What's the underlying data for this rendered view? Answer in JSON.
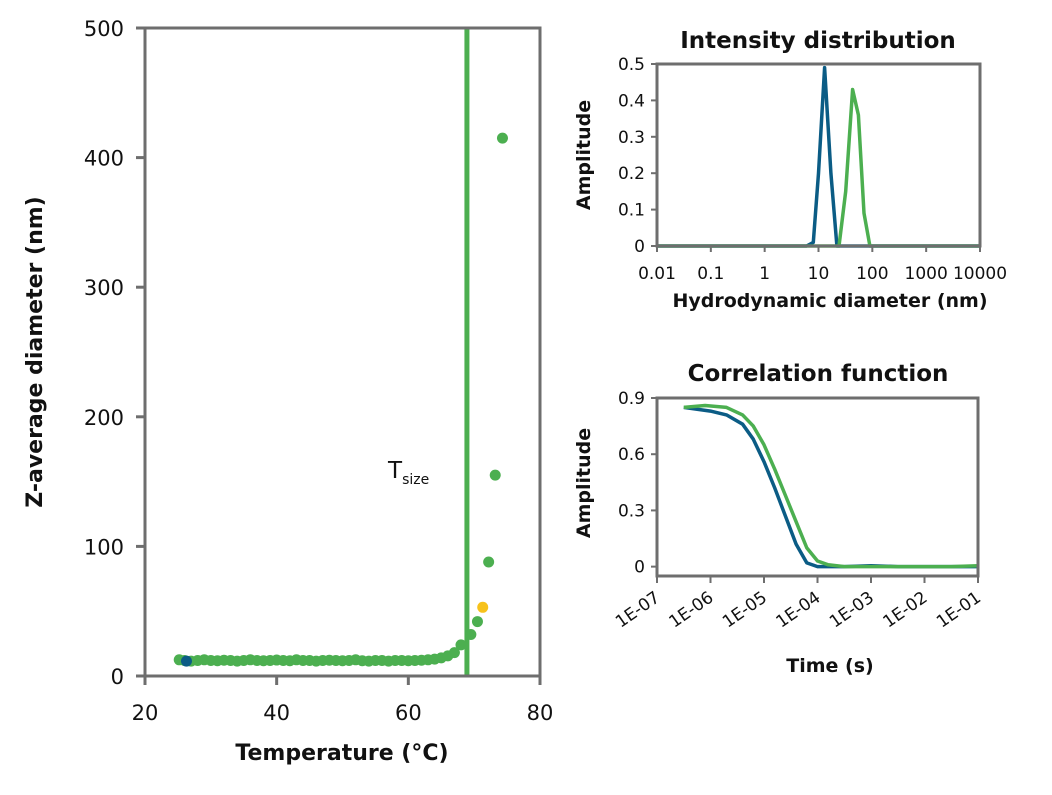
{
  "colors": {
    "green": "#4caf50",
    "blue": "#0b5c85",
    "yellow": "#f7c21b",
    "axis": "#6e6e6e"
  },
  "chart_data": [
    {
      "type": "scatter",
      "title": "",
      "xlabel": "Temperature (°C)",
      "ylabel": "Z-average diameter (nm)",
      "xlim": [
        20,
        80
      ],
      "ylim": [
        0,
        500
      ],
      "xticks": [
        "20",
        "40",
        "60",
        "80"
      ],
      "yticks": [
        "0",
        "100",
        "200",
        "300",
        "400",
        "500"
      ],
      "annotation": {
        "main": "T",
        "subscript": "size"
      },
      "tsize_line_x": 68.9,
      "series": [
        {
          "color": "green",
          "points": [
            [
              25.2,
              12.5
            ],
            [
              26,
              12
            ],
            [
              27,
              11.5
            ],
            [
              28,
              12
            ],
            [
              29,
              12.5
            ],
            [
              30,
              12
            ],
            [
              31,
              11.8
            ],
            [
              32,
              12.2
            ],
            [
              33,
              12
            ],
            [
              34,
              11.5
            ],
            [
              35,
              12
            ],
            [
              36,
              12.5
            ],
            [
              37,
              12
            ],
            [
              38,
              11.8
            ],
            [
              39,
              12
            ],
            [
              40,
              12.3
            ],
            [
              41,
              12
            ],
            [
              42,
              11.8
            ],
            [
              43,
              12.5
            ],
            [
              44,
              12
            ],
            [
              45,
              12
            ],
            [
              46,
              11.5
            ],
            [
              47,
              12
            ],
            [
              48,
              12.2
            ],
            [
              49,
              12
            ],
            [
              50,
              11.8
            ],
            [
              51,
              12
            ],
            [
              52,
              12.5
            ],
            [
              53,
              11.8
            ],
            [
              54,
              11.5
            ],
            [
              55,
              12
            ],
            [
              56,
              12
            ],
            [
              57,
              11.5
            ],
            [
              58,
              12
            ],
            [
              59,
              12
            ],
            [
              60,
              11.8
            ],
            [
              61,
              12
            ],
            [
              62,
              12.2
            ],
            [
              63,
              12.5
            ],
            [
              64,
              13
            ],
            [
              65,
              14
            ],
            [
              66,
              15.5
            ],
            [
              67,
              18
            ],
            [
              68,
              24
            ],
            [
              69.5,
              32
            ],
            [
              70.5,
              42
            ],
            [
              72.2,
              88
            ],
            [
              73.2,
              155
            ],
            [
              74.3,
              415
            ]
          ]
        },
        {
          "color": "blue",
          "points": [
            [
              26.3,
              11.5
            ]
          ]
        },
        {
          "color": "yellow",
          "points": [
            [
              71.3,
              53
            ]
          ]
        }
      ]
    },
    {
      "type": "line",
      "title": "Intensity distribution",
      "xlabel": "Hydrodynamic diameter (nm)",
      "ylabel": "Amplitude",
      "xscale": "log",
      "xlim": [
        0.01,
        10000
      ],
      "ylim": [
        0,
        0.5
      ],
      "xticks": [
        "0.01",
        "0.1",
        "1",
        "10",
        "100",
        "1000",
        "10000"
      ],
      "yticks": [
        "0",
        "0.1",
        "0.2",
        "0.3",
        "0.4",
        "0.5"
      ],
      "series": [
        {
          "color": "blue",
          "points": [
            [
              0.01,
              0
            ],
            [
              6,
              0
            ],
            [
              8,
              0.01
            ],
            [
              10,
              0.2
            ],
            [
              13,
              0.49
            ],
            [
              17,
              0.2
            ],
            [
              22,
              0
            ],
            [
              10000,
              0
            ]
          ]
        },
        {
          "color": "green",
          "points": [
            [
              0.01,
              0
            ],
            [
              24,
              0
            ],
            [
              32,
              0.15
            ],
            [
              43,
              0.43
            ],
            [
              55,
              0.36
            ],
            [
              70,
              0.09
            ],
            [
              90,
              0
            ],
            [
              10000,
              0
            ]
          ]
        }
      ]
    },
    {
      "type": "line",
      "title": "Correlation function",
      "xlabel": "Time (s)",
      "ylabel": "Amplitude",
      "xscale": "log",
      "xlim": [
        "1E-07",
        "1E-01"
      ],
      "ylim": [
        -0.05,
        0.9
      ],
      "xticks": [
        "1E-07",
        "1E-06",
        "1E-05",
        "1E-04",
        "1E-03",
        "1E-02",
        "1E-01"
      ],
      "yticks": [
        "0",
        "0.3",
        "0.6",
        "0.9"
      ],
      "series": [
        {
          "color": "blue",
          "points": [
            [
              6.5,
              0.85
            ],
            [
              6.0,
              0.83
            ],
            [
              5.7,
              0.81
            ],
            [
              5.4,
              0.76
            ],
            [
              5.2,
              0.68
            ],
            [
              5.0,
              0.56
            ],
            [
              4.8,
              0.42
            ],
            [
              4.6,
              0.27
            ],
            [
              4.4,
              0.12
            ],
            [
              4.2,
              0.02
            ],
            [
              4.0,
              0
            ],
            [
              3.5,
              0
            ],
            [
              3.0,
              0.005
            ],
            [
              2.5,
              0
            ],
            [
              2.0,
              0
            ],
            [
              1.5,
              0
            ],
            [
              1.0,
              0
            ]
          ]
        },
        {
          "color": "green",
          "points": [
            [
              6.5,
              0.85
            ],
            [
              6.1,
              0.86
            ],
            [
              5.7,
              0.85
            ],
            [
              5.4,
              0.81
            ],
            [
              5.2,
              0.75
            ],
            [
              5.0,
              0.65
            ],
            [
              4.8,
              0.52
            ],
            [
              4.6,
              0.38
            ],
            [
              4.4,
              0.24
            ],
            [
              4.2,
              0.1
            ],
            [
              4.0,
              0.03
            ],
            [
              3.8,
              0.01
            ],
            [
              3.5,
              0
            ],
            [
              3.0,
              0
            ],
            [
              2.5,
              0
            ],
            [
              2.0,
              0
            ],
            [
              1.5,
              0
            ],
            [
              1.0,
              0.005
            ]
          ]
        }
      ]
    }
  ]
}
